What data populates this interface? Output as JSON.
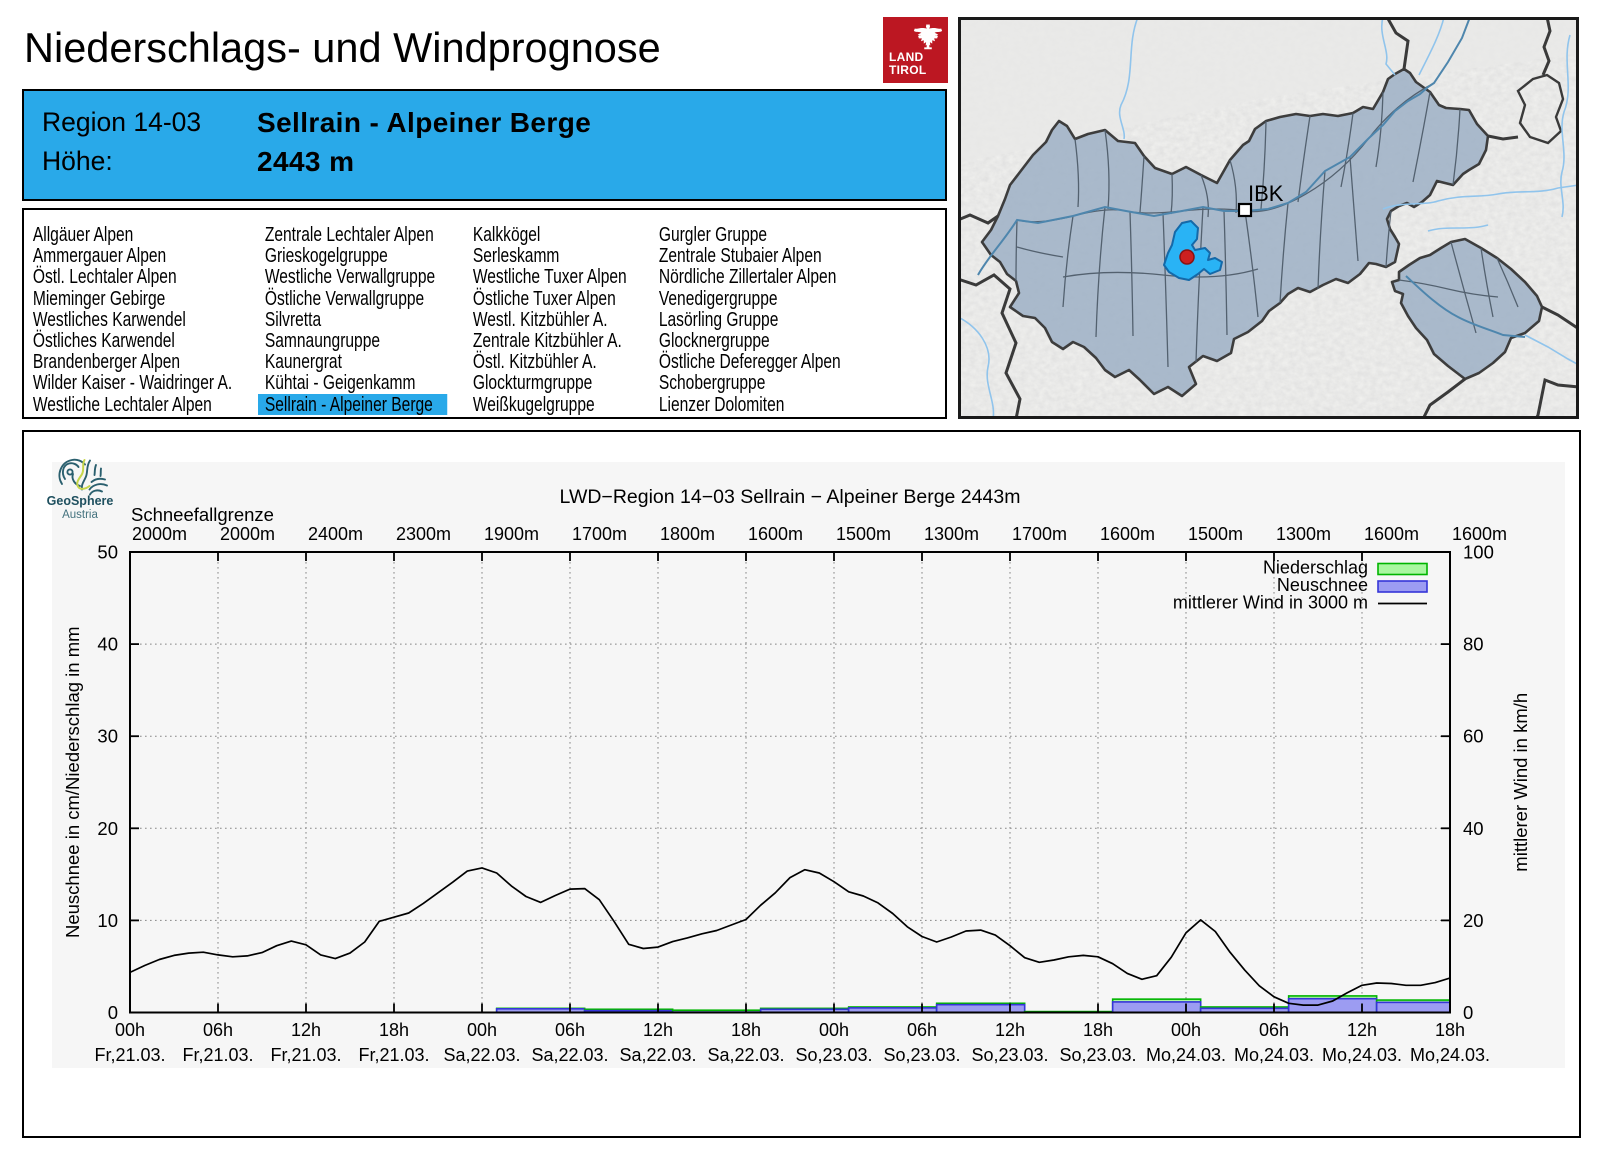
{
  "header": {
    "title": "Niederschlags- und Windprognose",
    "logo_line1": "LAND",
    "logo_line2": "TIROL"
  },
  "banner": {
    "region_label": "Region 14-03",
    "region_name": "Sellrain - Alpeiner Berge",
    "hoehe_label": "Höhe:",
    "hoehe_value": "2443 m"
  },
  "region_list": {
    "selected": "Sellrain - Alpeiner Berge",
    "columns": [
      [
        "Allgäuer Alpen",
        "Ammergauer Alpen",
        "Östl. Lechtaler Alpen",
        "Mieminger Gebirge",
        "Westliches Karwendel",
        "Östliches Karwendel",
        "Brandenberger Alpen",
        "Wilder Kaiser - Waidringer A.",
        "Westliche Lechtaler Alpen"
      ],
      [
        "Zentrale Lechtaler Alpen",
        "Grieskogelgruppe",
        "Westliche Verwallgruppe",
        "Östliche Verwallgruppe",
        "Silvretta",
        "Samnaungruppe",
        "Kaunergrat",
        "Kühtai - Geigenkamm",
        "Sellrain - Alpeiner Berge"
      ],
      [
        "Kalkkögel",
        "Serleskamm",
        "Westliche Tuxer Alpen",
        "Östliche Tuxer Alpen",
        "Westl. Kitzbühler A.",
        "Zentrale Kitzbühler A.",
        "Östl. Kitzbühler A.",
        "Glockturmgruppe",
        "Weißkugelgruppe"
      ],
      [
        "Gurgler Gruppe",
        "Zentrale Stubaier Alpen",
        "Nördliche Zillertaler Alpen",
        "Venedigergruppe",
        "Lasörling Gruppe",
        "Glocknergruppe",
        "Östliche Deferegger Alpen",
        "Schobergruppe",
        "Lienzer Dolomiten"
      ]
    ],
    "highlight_color": "#29a9e9"
  },
  "map": {
    "city_label": "IBK",
    "highlight_color": "#29b3f5",
    "marker_color": "#cc2020"
  },
  "geosphere": {
    "name": "GeoSphere",
    "country": "Austria"
  },
  "chart_data": {
    "type": "bar+line",
    "title": "LWD−Region 14−03 Sellrain − Alpeiner Berge 2443m",
    "top_axis_label": "Schneefallgrenze",
    "snowline_labels": [
      "2000m",
      "2000m",
      "2400m",
      "2300m",
      "1900m",
      "1700m",
      "1800m",
      "1600m",
      "1500m",
      "1300m",
      "1700m",
      "1600m",
      "1500m",
      "1300m",
      "1600m",
      "1600m"
    ],
    "x_tick_hours": [
      "00h",
      "06h",
      "12h",
      "18h",
      "00h",
      "06h",
      "12h",
      "18h",
      "00h",
      "06h",
      "12h",
      "18h",
      "00h",
      "06h",
      "12h",
      "18h"
    ],
    "x_tick_days": [
      "Fr,21.03.",
      "Fr,21.03.",
      "Fr,21.03.",
      "Fr,21.03.",
      "Sa,22.03.",
      "Sa,22.03.",
      "Sa,22.03.",
      "Sa,22.03.",
      "So,23.03.",
      "So,23.03.",
      "So,23.03.",
      "So,23.03.",
      "Mo,24.03.",
      "Mo,24.03.",
      "Mo,24.03.",
      "Mo,24.03."
    ],
    "ylabel_left": "Neuschnee in cm/Niederschlag in mm",
    "ylabel_right": "mittlerer Wind in km/h",
    "ylim_left": [
      0,
      50
    ],
    "ylim_right": [
      0,
      100
    ],
    "yticks_left": [
      0,
      10,
      20,
      30,
      40,
      50
    ],
    "yticks_right": [
      0,
      20,
      40,
      60,
      80,
      100
    ],
    "grid": true,
    "legend_position": "top-right",
    "legend": [
      {
        "label": "Niederschlag",
        "fill": "#a9f7a0",
        "stroke": "#00b400"
      },
      {
        "label": "Neuschnee",
        "fill": "#9c9cf2",
        "stroke": "#3535d8"
      },
      {
        "label": "mittlerer Wind in 3000 m",
        "stroke": "#000000"
      }
    ],
    "bars": {
      "block_hours": 6,
      "start_hours": [
        25,
        31,
        37,
        43,
        49,
        55,
        61,
        67,
        73,
        79,
        85
      ],
      "niederschlag_mm": [
        0.45,
        0.35,
        0.25,
        0.45,
        0.6,
        1.0,
        0.1,
        1.45,
        0.6,
        1.8,
        1.35
      ],
      "neuschnee_cm": [
        0.4,
        0.2,
        0.05,
        0.35,
        0.5,
        0.85,
        0.0,
        1.15,
        0.45,
        1.5,
        1.1
      ]
    },
    "wind_kmh": {
      "start_hour": 0,
      "step_hours": 1,
      "values": [
        8.7,
        10.2,
        11.5,
        12.4,
        12.9,
        13.1,
        12.5,
        12.1,
        12.3,
        13.0,
        14.5,
        15.5,
        14.7,
        12.5,
        11.7,
        12.9,
        15.3,
        19.8,
        20.7,
        21.6,
        23.7,
        26.0,
        28.3,
        30.7,
        31.4,
        30.3,
        27.5,
        25.2,
        23.9,
        25.4,
        26.8,
        26.9,
        24.5,
        19.8,
        14.8,
        13.9,
        14.2,
        15.4,
        16.2,
        17.1,
        17.8,
        19.0,
        20.2,
        23.3,
        26.0,
        29.3,
        31.0,
        30.3,
        28.4,
        26.2,
        25.3,
        23.8,
        21.5,
        18.6,
        16.5,
        15.3,
        16.4,
        17.7,
        17.9,
        16.8,
        14.5,
        11.9,
        10.9,
        11.4,
        12.1,
        12.4,
        12.1,
        10.6,
        8.5,
        7.2,
        8.0,
        12.0,
        17.3,
        20.1,
        17.6,
        13.1,
        9.2,
        5.8,
        3.4,
        2.0,
        1.6,
        1.6,
        2.5,
        4.3,
        5.9,
        6.4,
        6.3,
        5.9,
        5.9,
        6.5,
        7.5
      ]
    }
  }
}
